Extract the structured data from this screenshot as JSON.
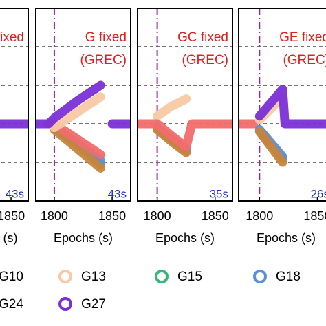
{
  "chart_data": [
    {
      "type": "line",
      "annotation": [
        "fixed"
      ],
      "time_label": "43s",
      "xlim": [
        1782,
        1865
      ],
      "xticks": [
        1850
      ],
      "xlabel": "(s)",
      "ylim": [
        0,
        5
      ],
      "grid_y": [
        1,
        2,
        3,
        4
      ],
      "vline": null,
      "x": [
        1782,
        1865
      ],
      "series": [
        {
          "name": "G27",
          "color": "#7b2fd6",
          "values": [
            2,
            2
          ]
        }
      ]
    },
    {
      "type": "line",
      "annotation": [
        "G fixed",
        "(GREC)"
      ],
      "time_label": "43s",
      "xlim": [
        1784,
        1866
      ],
      "xticks": [
        1800,
        1850
      ],
      "xlabel": "Epochs (s)",
      "ylim": [
        0,
        5
      ],
      "grid_y": [
        1,
        2,
        3,
        4
      ],
      "vline": 1800,
      "x": [
        1784,
        1795,
        1800,
        1820,
        1840,
        1845,
        1850,
        1866
      ],
      "series": [
        {
          "name": "G15",
          "color": "#35b779",
          "values": [
            null,
            null,
            1.9,
            1.45,
            0.95,
            null,
            null,
            null
          ]
        },
        {
          "name": "G18",
          "color": "#5a8fe0",
          "values": [
            null,
            null,
            1.9,
            1.5,
            1.05,
            null,
            null,
            null
          ]
        },
        {
          "name": "G24",
          "color": "#c8843c",
          "values": [
            null,
            null,
            1.85,
            1.35,
            0.85,
            null,
            null,
            null
          ]
        },
        {
          "name": "G10",
          "color": "#f26b6b",
          "values": [
            null,
            2,
            2,
            1.6,
            1.2,
            null,
            null,
            null
          ]
        },
        {
          "name": "G13",
          "color": "#f8c9a4",
          "values": [
            null,
            null,
            1.9,
            2.3,
            2.7,
            null,
            null,
            null
          ]
        },
        {
          "name": "G27",
          "color": "#7b2fd6",
          "values": [
            2,
            2,
            2.15,
            2.6,
            3.0,
            null,
            2,
            2
          ]
        }
      ]
    },
    {
      "type": "line",
      "annotation": [
        "GC fixed",
        "(GREC)"
      ],
      "time_label": "35s",
      "xlim": [
        1783,
        1865
      ],
      "xticks": [
        1800,
        1850
      ],
      "xlabel": "Epochs (s)",
      "ylim": [
        0,
        5
      ],
      "grid_y": [
        1,
        2,
        3,
        4
      ],
      "vline": 1800,
      "x": [
        1783,
        1800,
        1812,
        1825,
        1830,
        1865
      ],
      "series": [
        {
          "name": "G15",
          "color": "#35b779",
          "values": [
            null,
            1.9,
            1.6,
            1.35,
            null,
            null
          ]
        },
        {
          "name": "G18",
          "color": "#5a8fe0",
          "values": [
            null,
            1.9,
            1.6,
            1.3,
            null,
            null
          ]
        },
        {
          "name": "G24",
          "color": "#c8843c",
          "values": [
            null,
            1.85,
            1.55,
            1.25,
            null,
            null
          ]
        },
        {
          "name": "G13",
          "color": "#f8c9a4",
          "values": [
            null,
            2.2,
            2.45,
            2.65,
            null,
            null
          ]
        },
        {
          "name": "G10",
          "color": "#f26b6b",
          "values": [
            2,
            2,
            1.7,
            1.4,
            2,
            2
          ]
        }
      ]
    },
    {
      "type": "line",
      "annotation": [
        "GE fixed",
        "(GREC)"
      ],
      "time_label": "26s",
      "xlim": [
        1782,
        1864
      ],
      "xticks": [
        1800,
        1850
      ],
      "xlabel": "Epochs (s)",
      "ylim": [
        0,
        5
      ],
      "grid_y": [
        1,
        2,
        3,
        4
      ],
      "vline": 1800,
      "x": [
        1782,
        1795,
        1800,
        1810,
        1820,
        1822,
        1864
      ],
      "series": [
        {
          "name": "G10",
          "color": "#f26b6b",
          "values": [
            2,
            2,
            null,
            null,
            null,
            null,
            null
          ]
        },
        {
          "name": "G15",
          "color": "#35b779",
          "values": [
            null,
            null,
            1.85,
            1.45,
            1.1,
            null,
            null
          ]
        },
        {
          "name": "G18",
          "color": "#5a8fe0",
          "values": [
            null,
            null,
            1.85,
            1.5,
            1.15,
            null,
            null
          ]
        },
        {
          "name": "G24",
          "color": "#c8843c",
          "values": [
            null,
            null,
            1.8,
            1.4,
            1.0,
            null,
            null
          ]
        },
        {
          "name": "G13",
          "color": "#f8c9a4",
          "values": [
            null,
            null,
            2.1,
            2.4,
            2.7,
            null,
            null
          ]
        },
        {
          "name": "G27",
          "color": "#7b2fd6",
          "values": [
            null,
            null,
            2.2,
            2.55,
            2.9,
            2,
            2
          ]
        }
      ]
    }
  ],
  "legend": [
    {
      "name": "G10",
      "color": "#f26b6b"
    },
    {
      "name": "G13",
      "color": "#f8c9a4"
    },
    {
      "name": "G15",
      "color": "#35b779"
    },
    {
      "name": "G18",
      "color": "#5a8fe0"
    },
    {
      "name": "G24",
      "color": "#c8843c"
    },
    {
      "name": "G27",
      "color": "#7b2fd6"
    }
  ]
}
